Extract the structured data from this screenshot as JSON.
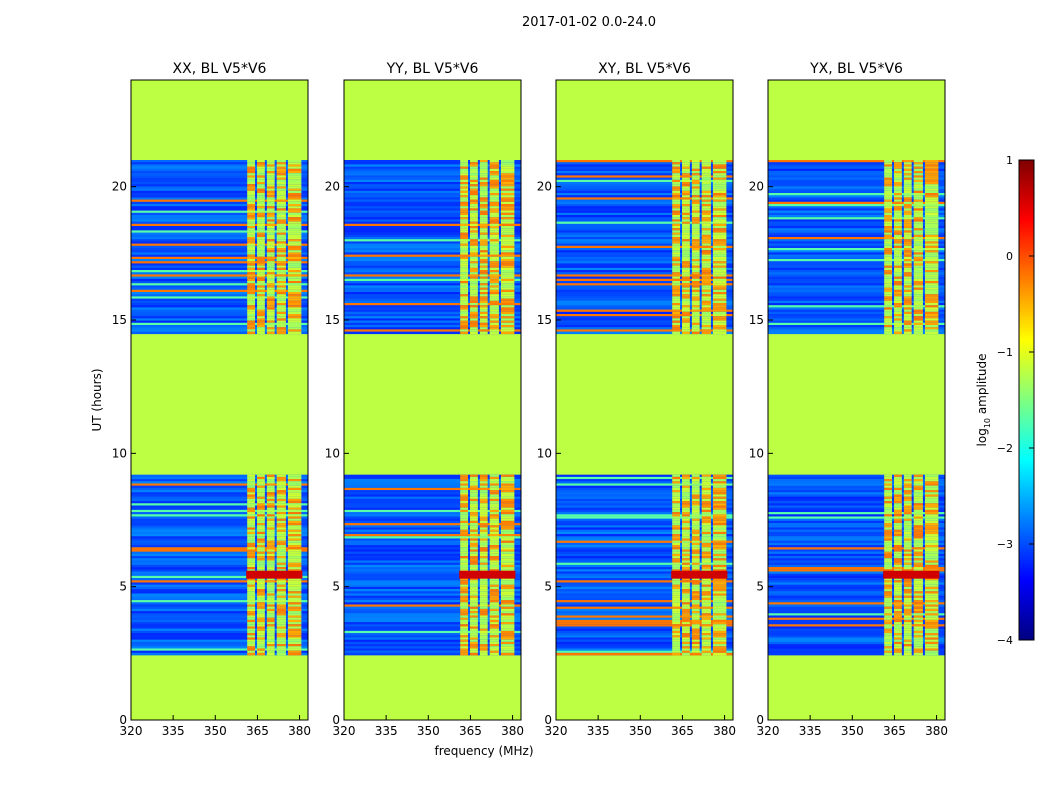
{
  "chart_data": {
    "type": "heatmap",
    "suptitle": "2017-01-02 0.0-24.0",
    "xlabel": "frequency (MHz)",
    "ylabel": "UT (hours)",
    "xlim": [
      320,
      383
    ],
    "ylim": [
      0,
      24
    ],
    "x_ticks": [
      320,
      335,
      350,
      365,
      380
    ],
    "y_ticks": [
      0,
      5,
      10,
      15,
      20
    ],
    "panels": [
      {
        "title": "XX, BL V5*V6"
      },
      {
        "title": "YY, BL V5*V6"
      },
      {
        "title": "XY, BL V5*V6"
      },
      {
        "title": "YX, BL V5*V6"
      }
    ],
    "flagged_value": -1.2,
    "data_ranges_hours": [
      [
        2.5,
        9.2
      ],
      [
        14.5,
        21.0
      ]
    ],
    "rfi_band_mhz": [
      361,
      381
    ],
    "colorbar": {
      "label": "log10 amplitude",
      "label_main": "log",
      "label_sub": "10",
      "label_rest": " amplitude",
      "min": -4,
      "max": 1,
      "ticks": [
        1,
        0,
        -1,
        -2,
        -3,
        -4
      ]
    }
  }
}
